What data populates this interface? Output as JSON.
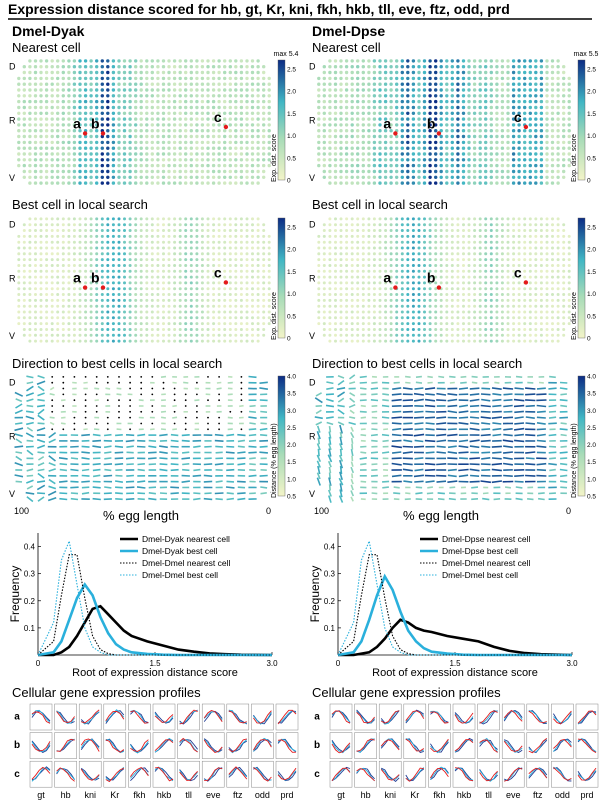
{
  "page": {
    "title": "Expression distance scored for hb, gt, Kr, kni, fkh, hkb, tll, eve, ftz, odd, prd"
  },
  "columns": [
    {
      "id": "left",
      "heading": "Dmel-Dyak",
      "panels": {
        "nearest": {
          "title": "Nearest cell",
          "colorbar_max": "max 5.4",
          "colorbar_label": "Exp. dist. score"
        },
        "best": {
          "title": "Best cell in local search",
          "colorbar_label": "Exp. dist. score"
        },
        "direction": {
          "title": "Direction to best cells in local search",
          "colorbar_label": "Distance (% egg length)",
          "x_axis_label": "% egg length",
          "x_left_tick": "100",
          "x_right_tick": "0"
        }
      },
      "points": [
        "a",
        "b",
        "c"
      ],
      "hist": {
        "legend": [
          "Dmel-Dyak nearest cell",
          "Dmel-Dyak best cell",
          "Dmel-Dmel nearest cell",
          "Dmel-Dmel best cell"
        ]
      },
      "profiles_title": "Cellular gene expression profiles"
    },
    {
      "id": "right",
      "heading": "Dmel-Dpse",
      "panels": {
        "nearest": {
          "title": "Nearest cell",
          "colorbar_max": "max 5.5",
          "colorbar_label": "Exp. dist. score"
        },
        "best": {
          "title": "Best cell in local search",
          "colorbar_label": "Exp. dist. score"
        },
        "direction": {
          "title": "Direction to best cells in local search",
          "colorbar_label": "Distance (% egg length)",
          "x_axis_label": "% egg length",
          "x_left_tick": "100",
          "x_right_tick": "0"
        }
      },
      "points": [
        "a",
        "b",
        "c"
      ],
      "hist": {
        "legend": [
          "Dmel-Dpse nearest cell",
          "Dmel-Dpse best cell",
          "Dmel-Dmel nearest cell",
          "Dmel-Dmel best cell"
        ]
      },
      "profiles_title": "Cellular gene expression profiles"
    }
  ],
  "axes": {
    "dv_labels": [
      "D",
      "R",
      "V"
    ],
    "score_ticks": [
      "0",
      "0.5",
      "1.0",
      "1.5",
      "2.0",
      "2.5"
    ],
    "distance_ticks": [
      "0.5",
      "1.0",
      "1.5",
      "2.0",
      "2.5",
      "3.0",
      "3.5",
      "4.0"
    ]
  },
  "genes": [
    "gt",
    "hb",
    "kni",
    "Kr",
    "fkh",
    "hkb",
    "tll",
    "eve",
    "ftz",
    "odd",
    "prd"
  ],
  "colors": {
    "low": "#f3f4c8",
    "mid": "#41b6c4",
    "high": "#0c2c84",
    "marker": "#e41a1c"
  },
  "chart_data": [
    {
      "type": "line",
      "title": "",
      "xlabel": "Root of expression distance score",
      "ylabel": "Frequency",
      "xlim": [
        0,
        3.0
      ],
      "ylim": [
        0,
        0.45
      ],
      "xticks": [
        0,
        1.5,
        3.0
      ],
      "xticklabels": [
        "0",
        "1.5",
        "3.0"
      ],
      "yticks": [
        0.1,
        0.2,
        0.3,
        0.4
      ],
      "yticklabels": [
        "0.1",
        "0.2",
        "0.3",
        "0.4"
      ],
      "x": [
        0,
        0.2,
        0.3,
        0.4,
        0.5,
        0.6,
        0.7,
        0.8,
        0.9,
        1.0,
        1.1,
        1.2,
        1.4,
        1.6,
        1.8,
        2.0,
        2.2,
        2.4,
        2.6,
        3.0
      ],
      "series": [
        {
          "name": "Dmel-Dyak nearest cell",
          "style": "solid-thick",
          "color": "#000000",
          "values": [
            0,
            0,
            0.01,
            0.03,
            0.07,
            0.12,
            0.17,
            0.18,
            0.15,
            0.12,
            0.09,
            0.07,
            0.05,
            0.035,
            0.02,
            0.012,
            0.006,
            0.003,
            0.001,
            0
          ]
        },
        {
          "name": "Dmel-Dyak best cell",
          "style": "solid-thick",
          "color": "#2ab0dc",
          "values": [
            0,
            0.01,
            0.05,
            0.13,
            0.21,
            0.26,
            0.22,
            0.14,
            0.08,
            0.04,
            0.02,
            0.01,
            0.004,
            0.001,
            0,
            0,
            0,
            0,
            0,
            0
          ]
        },
        {
          "name": "Dmel-Dmel nearest cell",
          "style": "dotted",
          "color": "#000000",
          "values": [
            0,
            0.05,
            0.22,
            0.37,
            0.37,
            0.21,
            0.07,
            0.02,
            0.005,
            0,
            0,
            0,
            0,
            0,
            0,
            0,
            0,
            0,
            0,
            0
          ]
        },
        {
          "name": "Dmel-Dmel best cell",
          "style": "dotted",
          "color": "#2ab0dc",
          "values": [
            0,
            0.12,
            0.35,
            0.42,
            0.26,
            0.1,
            0.03,
            0.01,
            0,
            0,
            0,
            0,
            0,
            0,
            0,
            0,
            0,
            0,
            0,
            0
          ]
        }
      ]
    },
    {
      "type": "line",
      "title": "",
      "xlabel": "Root of expression distance score",
      "ylabel": "Frequency",
      "xlim": [
        0,
        3.0
      ],
      "ylim": [
        0,
        0.45
      ],
      "xticks": [
        0,
        1.5,
        3.0
      ],
      "xticklabels": [
        "0",
        "1.5",
        "3.0"
      ],
      "yticks": [
        0.1,
        0.2,
        0.3,
        0.4
      ],
      "yticklabels": [
        "0.1",
        "0.2",
        "0.3",
        "0.4"
      ],
      "x": [
        0,
        0.2,
        0.3,
        0.4,
        0.5,
        0.6,
        0.7,
        0.8,
        0.9,
        1.0,
        1.1,
        1.2,
        1.4,
        1.6,
        1.8,
        2.0,
        2.2,
        2.4,
        2.6,
        3.0
      ],
      "series": [
        {
          "name": "Dmel-Dpse nearest cell",
          "style": "solid-thick",
          "color": "#000000",
          "values": [
            0,
            0,
            0.005,
            0.01,
            0.03,
            0.06,
            0.1,
            0.13,
            0.12,
            0.1,
            0.09,
            0.085,
            0.07,
            0.06,
            0.05,
            0.03,
            0.015,
            0.007,
            0.003,
            0
          ]
        },
        {
          "name": "Dmel-Dpse best cell",
          "style": "solid-thick",
          "color": "#2ab0dc",
          "values": [
            0,
            0.01,
            0.05,
            0.13,
            0.22,
            0.29,
            0.24,
            0.16,
            0.09,
            0.05,
            0.025,
            0.012,
            0.005,
            0.001,
            0,
            0,
            0,
            0,
            0,
            0
          ]
        },
        {
          "name": "Dmel-Dmel nearest cell",
          "style": "dotted",
          "color": "#000000",
          "values": [
            0,
            0.05,
            0.22,
            0.37,
            0.37,
            0.21,
            0.07,
            0.02,
            0.005,
            0,
            0,
            0,
            0,
            0,
            0,
            0,
            0,
            0,
            0,
            0
          ]
        },
        {
          "name": "Dmel-Dmel best cell",
          "style": "dotted",
          "color": "#2ab0dc",
          "values": [
            0,
            0.12,
            0.35,
            0.42,
            0.26,
            0.1,
            0.03,
            0.01,
            0,
            0,
            0,
            0,
            0,
            0,
            0,
            0,
            0,
            0,
            0,
            0
          ]
        }
      ]
    }
  ]
}
